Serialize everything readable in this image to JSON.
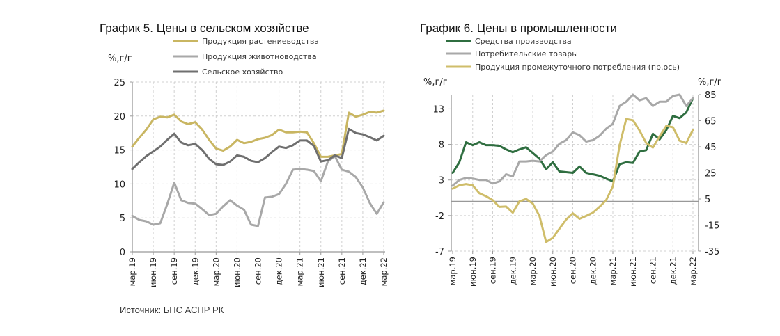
{
  "source": "Источник: БНС АСПР РК",
  "chart_data": [
    {
      "type": "line",
      "title": "График 5. Цены в сельском хозяйстве",
      "ylabel": "%,г/г",
      "ylim": [
        0,
        25
      ],
      "yticks": [
        0,
        5,
        10,
        15,
        20,
        25
      ],
      "grid": true,
      "legend_position": "top",
      "x_tick_labels": [
        "мар.19",
        "июн.19",
        "сен.19",
        "дек.19",
        "мар.20",
        "июн.20",
        "сен.20",
        "дек.20",
        "мар.21",
        "июн.21",
        "сен.21",
        "дек.21",
        "мар.22"
      ],
      "x_start": "2019-03",
      "x_end": "2022-03",
      "frequency": "monthly",
      "series": [
        {
          "name": "Продукция растениеводства",
          "color": "#c9b662",
          "values": [
            15.5,
            16.8,
            18,
            19.5,
            19.9,
            19.8,
            20.2,
            19.2,
            18.8,
            19.1,
            18,
            16.5,
            15.2,
            14.9,
            15.5,
            16.5,
            16,
            16.2,
            16.6,
            16.8,
            17.2,
            18,
            17.6,
            17.6,
            17.7,
            17.6,
            16,
            14,
            14,
            14.2,
            14.4,
            20.5,
            19.9,
            20.2,
            20.6,
            20.5,
            20.8
          ]
        },
        {
          "name": "Продукция животноводства",
          "color": "#a8a8a8",
          "values": [
            5.3,
            4.7,
            4.5,
            4,
            4.2,
            7,
            10.2,
            7.6,
            7.2,
            7.1,
            6.3,
            5.4,
            5.6,
            6.7,
            7.6,
            6.8,
            6.2,
            4,
            3.8,
            8,
            8.1,
            8.5,
            10,
            12.1,
            12.2,
            12.1,
            11.9,
            10.4,
            13.3,
            14.1,
            12.1,
            11.8,
            11,
            9.5,
            7.2,
            5.6,
            7.3
          ]
        },
        {
          "name": "Сельское хозяйство",
          "color": "#6f6f6f",
          "values": [
            12.2,
            13.2,
            14.1,
            14.8,
            15.5,
            16.5,
            17.4,
            16.1,
            15.7,
            15.9,
            15,
            13.7,
            12.9,
            12.8,
            13.3,
            14.2,
            14,
            13.4,
            13.2,
            13.8,
            14.7,
            15.5,
            15.3,
            15.7,
            16.4,
            16.4,
            15.6,
            13.3,
            13.5,
            14.2,
            13.8,
            18.1,
            17.5,
            17.3,
            16.9,
            16.4,
            17.1
          ]
        }
      ]
    },
    {
      "type": "line",
      "title": "График 6. Цены в промышленности",
      "ylabel": "%,г/г",
      "ylabel_right": "%,г/г",
      "ylim": [
        -7,
        15
      ],
      "yticks": [
        -7,
        -2,
        3,
        8,
        13
      ],
      "ylim_right": [
        -35,
        85
      ],
      "yticks_right": [
        -35,
        -15,
        5,
        25,
        45,
        65,
        85
      ],
      "grid": true,
      "legend_position": "top",
      "x_tick_labels": [
        "мар.19",
        "июн.19",
        "сен.19",
        "дек.19",
        "мар.20",
        "июн.20",
        "сен.20",
        "дек.20",
        "мар.21",
        "июн.21",
        "сен.21",
        "дек.21",
        "мар.22"
      ],
      "x_start": "2019-03",
      "x_end": "2022-03",
      "frequency": "monthly",
      "series": [
        {
          "name": "Средства производства",
          "color": "#2f6e40",
          "axis": "left",
          "values": [
            4,
            5.5,
            8.3,
            7.9,
            8.3,
            7.9,
            7.9,
            7.8,
            7.3,
            6.9,
            7.3,
            7.6,
            6.8,
            6,
            4.5,
            5.5,
            4.2,
            4.1,
            4,
            4.9,
            4,
            3.8,
            3.6,
            3.2,
            2.8,
            5.2,
            5.5,
            5.4,
            7,
            7.2,
            9.5,
            8.7,
            10,
            12,
            11.7,
            12.5,
            14.5
          ]
        },
        {
          "name": "Потребительские товары",
          "color": "#a8a8a8",
          "axis": "left",
          "values": [
            2.2,
            3,
            3.3,
            3.2,
            3,
            3,
            2.5,
            2.8,
            3.8,
            3.5,
            5.6,
            5.6,
            5.7,
            5.6,
            6.5,
            7,
            8.1,
            8.6,
            9.7,
            9.3,
            8.4,
            8.6,
            9.2,
            10.2,
            10.9,
            13.4,
            14,
            15,
            14.2,
            14.5,
            13.4,
            14,
            14,
            14.8,
            15,
            13.4,
            14.5
          ]
        },
        {
          "name": "Продукция промежуточного потребления (пр.ось)",
          "color": "#cfbd6a",
          "axis": "right",
          "values": [
            12.9,
            15.5,
            16.4,
            15.5,
            9.4,
            7.1,
            4.1,
            -1.1,
            -0.8,
            -5.5,
            3.2,
            5,
            1.5,
            -8,
            -28,
            -24.8,
            -17.8,
            -10.8,
            -6,
            -10.2,
            -8,
            -5.5,
            -1.1,
            4.1,
            14.6,
            46,
            66.3,
            65.4,
            57.5,
            47.9,
            44.4,
            53,
            61,
            60,
            49.7,
            47.9,
            58
          ]
        }
      ]
    }
  ]
}
